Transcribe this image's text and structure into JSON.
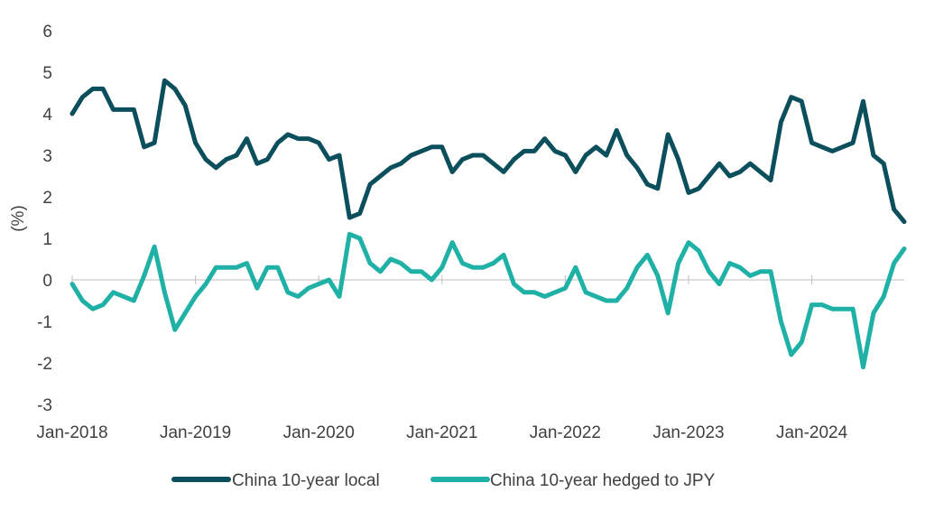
{
  "chart_data": {
    "type": "line",
    "title": "",
    "xlabel": "",
    "ylabel": "(%)",
    "ylim": [
      -3,
      6
    ],
    "yticks": [
      "6",
      "5",
      "4",
      "3",
      "2",
      "1",
      "0",
      "-1",
      "-2",
      "-3"
    ],
    "xlim": [
      "2018-01",
      "2024-10"
    ],
    "xticks": [
      "Jan-2018",
      "Jan-2019",
      "Jan-2020",
      "Jan-2021",
      "Jan-2022",
      "Jan-2023",
      "Jan-2024"
    ],
    "grid": false,
    "legend_position": "bottom",
    "series": [
      {
        "name": "China 10-year local",
        "color": "#0c4f5c",
        "points": [
          [
            "2018-01",
            4.0
          ],
          [
            "2018-02",
            4.4
          ],
          [
            "2018-03",
            4.6
          ],
          [
            "2018-04",
            4.6
          ],
          [
            "2018-05",
            4.1
          ],
          [
            "2018-06",
            4.1
          ],
          [
            "2018-07",
            4.1
          ],
          [
            "2018-08",
            3.2
          ],
          [
            "2018-09",
            3.3
          ],
          [
            "2018-10",
            4.8
          ],
          [
            "2018-11",
            4.6
          ],
          [
            "2018-12",
            4.2
          ],
          [
            "2019-01",
            3.3
          ],
          [
            "2019-02",
            2.9
          ],
          [
            "2019-03",
            2.7
          ],
          [
            "2019-04",
            2.9
          ],
          [
            "2019-05",
            3.0
          ],
          [
            "2019-06",
            3.4
          ],
          [
            "2019-07",
            2.8
          ],
          [
            "2019-08",
            2.9
          ],
          [
            "2019-09",
            3.3
          ],
          [
            "2019-10",
            3.5
          ],
          [
            "2019-11",
            3.4
          ],
          [
            "2019-12",
            3.4
          ],
          [
            "2020-01",
            3.3
          ],
          [
            "2020-02",
            2.9
          ],
          [
            "2020-03",
            3.0
          ],
          [
            "2020-04",
            1.5
          ],
          [
            "2020-05",
            1.6
          ],
          [
            "2020-06",
            2.3
          ],
          [
            "2020-07",
            2.5
          ],
          [
            "2020-08",
            2.7
          ],
          [
            "2020-09",
            2.8
          ],
          [
            "2020-10",
            3.0
          ],
          [
            "2020-11",
            3.1
          ],
          [
            "2020-12",
            3.2
          ],
          [
            "2021-01",
            3.2
          ],
          [
            "2021-02",
            2.6
          ],
          [
            "2021-03",
            2.9
          ],
          [
            "2021-04",
            3.0
          ],
          [
            "2021-05",
            3.0
          ],
          [
            "2021-06",
            2.8
          ],
          [
            "2021-07",
            2.6
          ],
          [
            "2021-08",
            2.9
          ],
          [
            "2021-09",
            3.1
          ],
          [
            "2021-10",
            3.1
          ],
          [
            "2021-11",
            3.4
          ],
          [
            "2021-12",
            3.1
          ],
          [
            "2022-01",
            3.0
          ],
          [
            "2022-02",
            2.6
          ],
          [
            "2022-03",
            3.0
          ],
          [
            "2022-04",
            3.2
          ],
          [
            "2022-05",
            3.0
          ],
          [
            "2022-06",
            3.6
          ],
          [
            "2022-07",
            3.0
          ],
          [
            "2022-08",
            2.7
          ],
          [
            "2022-09",
            2.3
          ],
          [
            "2022-10",
            2.2
          ],
          [
            "2022-11",
            3.5
          ],
          [
            "2022-12",
            2.9
          ],
          [
            "2023-01",
            2.1
          ],
          [
            "2023-02",
            2.2
          ],
          [
            "2023-03",
            2.5
          ],
          [
            "2023-04",
            2.8
          ],
          [
            "2023-05",
            2.5
          ],
          [
            "2023-06",
            2.6
          ],
          [
            "2023-07",
            2.8
          ],
          [
            "2023-08",
            2.6
          ],
          [
            "2023-09",
            2.4
          ],
          [
            "2023-10",
            3.8
          ],
          [
            "2023-11",
            4.4
          ],
          [
            "2023-12",
            4.3
          ],
          [
            "2024-01",
            3.3
          ],
          [
            "2024-02",
            3.2
          ],
          [
            "2024-03",
            3.1
          ],
          [
            "2024-04",
            3.2
          ],
          [
            "2024-05",
            3.3
          ],
          [
            "2024-06",
            4.3
          ],
          [
            "2024-07",
            3.0
          ],
          [
            "2024-08",
            2.8
          ],
          [
            "2024-09",
            1.7
          ],
          [
            "2024-10",
            1.4
          ]
        ]
      },
      {
        "name": "China 10-year hedged to JPY",
        "color": "#1fb0a6",
        "points": [
          [
            "2018-01",
            -0.1
          ],
          [
            "2018-02",
            -0.5
          ],
          [
            "2018-03",
            -0.7
          ],
          [
            "2018-04",
            -0.6
          ],
          [
            "2018-05",
            -0.3
          ],
          [
            "2018-06",
            -0.4
          ],
          [
            "2018-07",
            -0.5
          ],
          [
            "2018-08",
            0.1
          ],
          [
            "2018-09",
            0.8
          ],
          [
            "2018-10",
            -0.3
          ],
          [
            "2018-11",
            -1.2
          ],
          [
            "2018-12",
            -0.8
          ],
          [
            "2019-01",
            -0.4
          ],
          [
            "2019-02",
            -0.1
          ],
          [
            "2019-03",
            0.3
          ],
          [
            "2019-04",
            0.3
          ],
          [
            "2019-05",
            0.3
          ],
          [
            "2019-06",
            0.4
          ],
          [
            "2019-07",
            -0.2
          ],
          [
            "2019-08",
            0.3
          ],
          [
            "2019-09",
            0.3
          ],
          [
            "2019-10",
            -0.3
          ],
          [
            "2019-11",
            -0.4
          ],
          [
            "2019-12",
            -0.2
          ],
          [
            "2020-01",
            -0.1
          ],
          [
            "2020-02",
            0.0
          ],
          [
            "2020-03",
            -0.4
          ],
          [
            "2020-04",
            1.1
          ],
          [
            "2020-05",
            1.0
          ],
          [
            "2020-06",
            0.4
          ],
          [
            "2020-07",
            0.2
          ],
          [
            "2020-08",
            0.5
          ],
          [
            "2020-09",
            0.4
          ],
          [
            "2020-10",
            0.2
          ],
          [
            "2020-11",
            0.2
          ],
          [
            "2020-12",
            0.0
          ],
          [
            "2021-01",
            0.3
          ],
          [
            "2021-02",
            0.9
          ],
          [
            "2021-03",
            0.4
          ],
          [
            "2021-04",
            0.3
          ],
          [
            "2021-05",
            0.3
          ],
          [
            "2021-06",
            0.4
          ],
          [
            "2021-07",
            0.6
          ],
          [
            "2021-08",
            -0.1
          ],
          [
            "2021-09",
            -0.3
          ],
          [
            "2021-10",
            -0.3
          ],
          [
            "2021-11",
            -0.4
          ],
          [
            "2021-12",
            -0.3
          ],
          [
            "2022-01",
            -0.2
          ],
          [
            "2022-02",
            0.3
          ],
          [
            "2022-03",
            -0.3
          ],
          [
            "2022-04",
            -0.4
          ],
          [
            "2022-05",
            -0.5
          ],
          [
            "2022-06",
            -0.5
          ],
          [
            "2022-07",
            -0.2
          ],
          [
            "2022-08",
            0.3
          ],
          [
            "2022-09",
            0.6
          ],
          [
            "2022-10",
            0.1
          ],
          [
            "2022-11",
            -0.8
          ],
          [
            "2022-12",
            0.4
          ],
          [
            "2023-01",
            0.9
          ],
          [
            "2023-02",
            0.7
          ],
          [
            "2023-03",
            0.2
          ],
          [
            "2023-04",
            -0.1
          ],
          [
            "2023-05",
            0.4
          ],
          [
            "2023-06",
            0.3
          ],
          [
            "2023-07",
            0.1
          ],
          [
            "2023-08",
            0.2
          ],
          [
            "2023-09",
            0.2
          ],
          [
            "2023-10",
            -1.0
          ],
          [
            "2023-11",
            -1.8
          ],
          [
            "2023-12",
            -1.5
          ],
          [
            "2024-01",
            -0.6
          ],
          [
            "2024-02",
            -0.6
          ],
          [
            "2024-03",
            -0.7
          ],
          [
            "2024-04",
            -0.7
          ],
          [
            "2024-05",
            -0.7
          ],
          [
            "2024-06",
            -2.1
          ],
          [
            "2024-07",
            -0.8
          ],
          [
            "2024-08",
            -0.4
          ],
          [
            "2024-09",
            0.4
          ],
          [
            "2024-10",
            0.75
          ]
        ]
      }
    ]
  }
}
